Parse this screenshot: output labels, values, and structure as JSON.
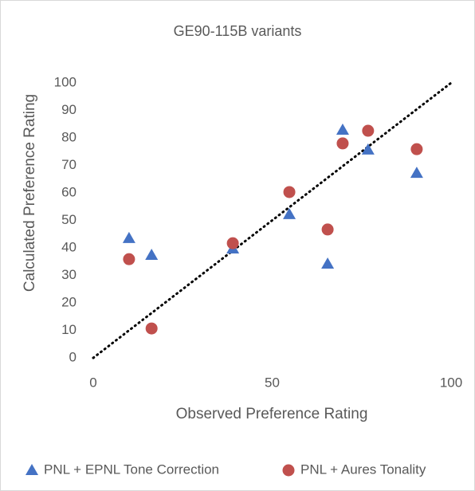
{
  "chart_data": {
    "type": "scatter",
    "title": "GE90-115B variants",
    "x_label": "Observed Preference Rating",
    "y_label": "Calculated Preference Rating",
    "xlim": [
      0,
      100
    ],
    "ylim": [
      0,
      100
    ],
    "xticks": [
      0,
      50,
      100
    ],
    "yticks": [
      0,
      10,
      20,
      30,
      40,
      50,
      60,
      70,
      80,
      90,
      100
    ],
    "grid": false,
    "legend": "bottom",
    "series": [
      {
        "name": "PNL + EPNL Tone Correction",
        "color": "#4472c4",
        "marker": "triangle",
        "x": [
          10,
          16.3,
          39,
          54.8,
          65.5,
          69.7,
          76.8,
          90.4
        ],
        "values": [
          43.5,
          37.4,
          39.7,
          52.2,
          34.2,
          82.9,
          75.7,
          67.2
        ]
      },
      {
        "name": "PNL + Aures Tonality",
        "color": "#c0504d",
        "marker": "circle",
        "x": [
          10,
          16.3,
          39,
          54.8,
          65.5,
          69.7,
          76.8,
          90.4
        ],
        "values": [
          35.9,
          10.7,
          41.7,
          60.3,
          46.7,
          78,
          82.6,
          75.9
        ]
      }
    ],
    "reference_line": {
      "x": [
        0,
        100
      ],
      "values": [
        0,
        100
      ],
      "color": "#000000"
    }
  }
}
